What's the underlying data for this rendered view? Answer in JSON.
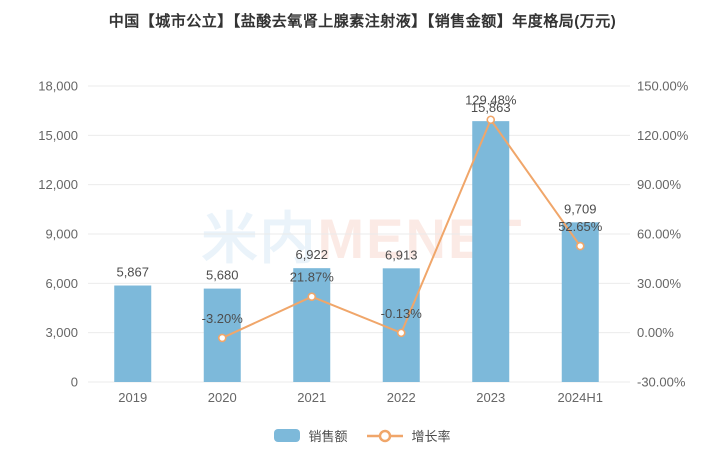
{
  "title": "中国【城市公立】【盐酸去氧肾上腺素注射液】【销售金额】年度格局(万元)",
  "watermark": {
    "part1": "米内",
    "part2": "MENET"
  },
  "colors": {
    "bar": "#7db9da",
    "line": "#f0a66a",
    "grid": "#ebebeb",
    "axis_text": "#666666",
    "label_text": "#4d4d4d",
    "title_text": "#333333"
  },
  "legend": {
    "items": [
      {
        "label": "销售额",
        "type": "bar"
      },
      {
        "label": "增长率",
        "type": "line"
      }
    ]
  },
  "chart_data": {
    "type": "combo-bar-line",
    "categories": [
      "2019",
      "2020",
      "2021",
      "2022",
      "2023",
      "2024H1"
    ],
    "series": [
      {
        "name": "销售额",
        "type": "bar",
        "axis": "left",
        "values": [
          5867,
          5680,
          6922,
          6913,
          15863,
          9709
        ],
        "labels": [
          "5,867",
          "5,680",
          "6,922",
          "6,913",
          "15,863",
          "9,709"
        ]
      },
      {
        "name": "增长率",
        "type": "line",
        "axis": "right",
        "values": [
          null,
          -3.2,
          21.87,
          -0.13,
          129.48,
          52.65
        ],
        "labels": [
          null,
          "-3.20%",
          "21.87%",
          "-0.13%",
          "129.48%",
          "52.65%"
        ]
      }
    ],
    "left_axis": {
      "min": 0,
      "max": 18000,
      "step": 3000,
      "tick_labels": [
        "0",
        "3,000",
        "6,000",
        "9,000",
        "12,000",
        "15,000",
        "18,000"
      ]
    },
    "right_axis": {
      "min": -30,
      "max": 150,
      "step": 30,
      "tick_labels": [
        "-30.00%",
        "0.00%",
        "30.00%",
        "60.00%",
        "90.00%",
        "120.00%",
        "150.00%"
      ]
    },
    "grid": true,
    "legend_position": "bottom"
  }
}
